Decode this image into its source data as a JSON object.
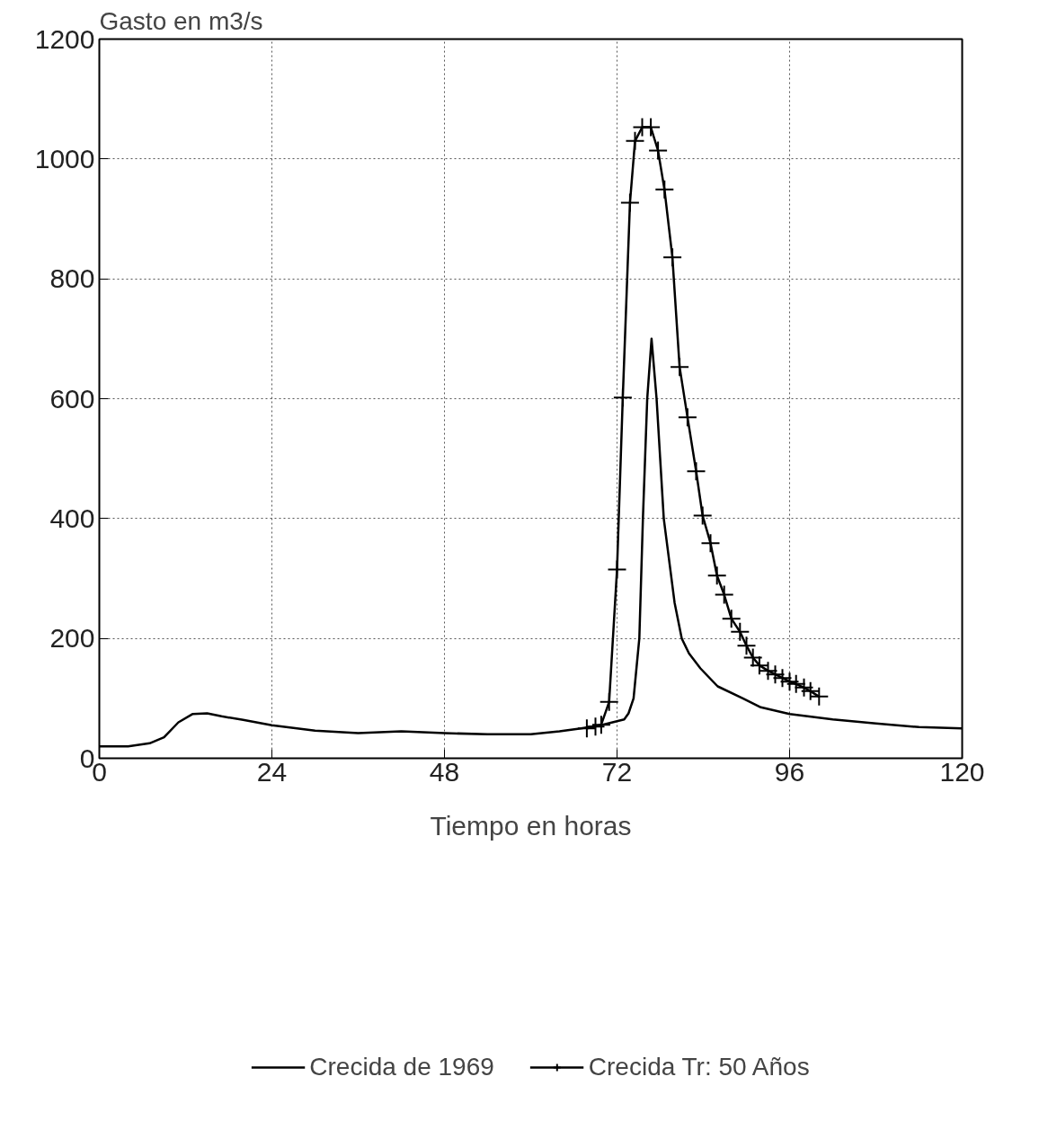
{
  "chart_data": {
    "type": "line",
    "ylabel": "Gasto en m3/s",
    "xlabel": "Tiempo en horas",
    "xlim": [
      0,
      120
    ],
    "ylim": [
      0,
      1200
    ],
    "xticks": [
      0,
      24,
      48,
      72,
      96,
      120
    ],
    "yticks": [
      0,
      200,
      400,
      600,
      800,
      1000,
      1200
    ],
    "grid": true,
    "legend": "bottom",
    "line_style": "solid",
    "series": [
      {
        "name": "Crecida de 1969",
        "color": "#000000",
        "marker": "none",
        "x": [
          0,
          4,
          7,
          9,
          11,
          13,
          15,
          17,
          20,
          24,
          30,
          36,
          42,
          48,
          54,
          60,
          64,
          67,
          70,
          72,
          73,
          73.6,
          74.3,
          75.1,
          75.6,
          76.2,
          76.8,
          77.5,
          78.5,
          80,
          81,
          82,
          83.6,
          86,
          89.5,
          92,
          96,
          102,
          108,
          114,
          120
        ],
        "values": [
          20,
          20,
          25,
          35,
          60,
          74,
          75,
          70,
          64,
          55,
          46,
          42,
          45,
          42,
          40,
          40,
          45,
          50,
          56,
          62,
          65,
          75,
          100,
          200,
          400,
          600,
          700,
          600,
          400,
          260,
          200,
          175,
          150,
          120,
          100,
          85,
          74,
          65,
          58,
          52,
          50
        ]
      },
      {
        "name": "Crecida Tr: 50 Años",
        "color": "#000000",
        "marker": "cross",
        "x": [
          67.8,
          69,
          69.8,
          70.9,
          72,
          72.8,
          73.8,
          74.5,
          75.5,
          76.7,
          77.7,
          78.6,
          79.7,
          80.7,
          81.8,
          83,
          83.9,
          85,
          85.9,
          86.9,
          87.9,
          89.1,
          90,
          90.9,
          91.8,
          93,
          94,
          95,
          96,
          96.9,
          98,
          98.9,
          100.1
        ],
        "values": [
          50,
          53,
          56,
          94,
          315,
          602,
          927,
          1030,
          1053,
          1053,
          1014,
          949,
          836,
          653,
          569,
          479,
          405,
          359,
          305,
          273,
          233,
          211,
          188,
          168,
          155,
          146,
          140,
          134,
          128,
          124,
          118,
          112,
          103
        ]
      }
    ]
  }
}
